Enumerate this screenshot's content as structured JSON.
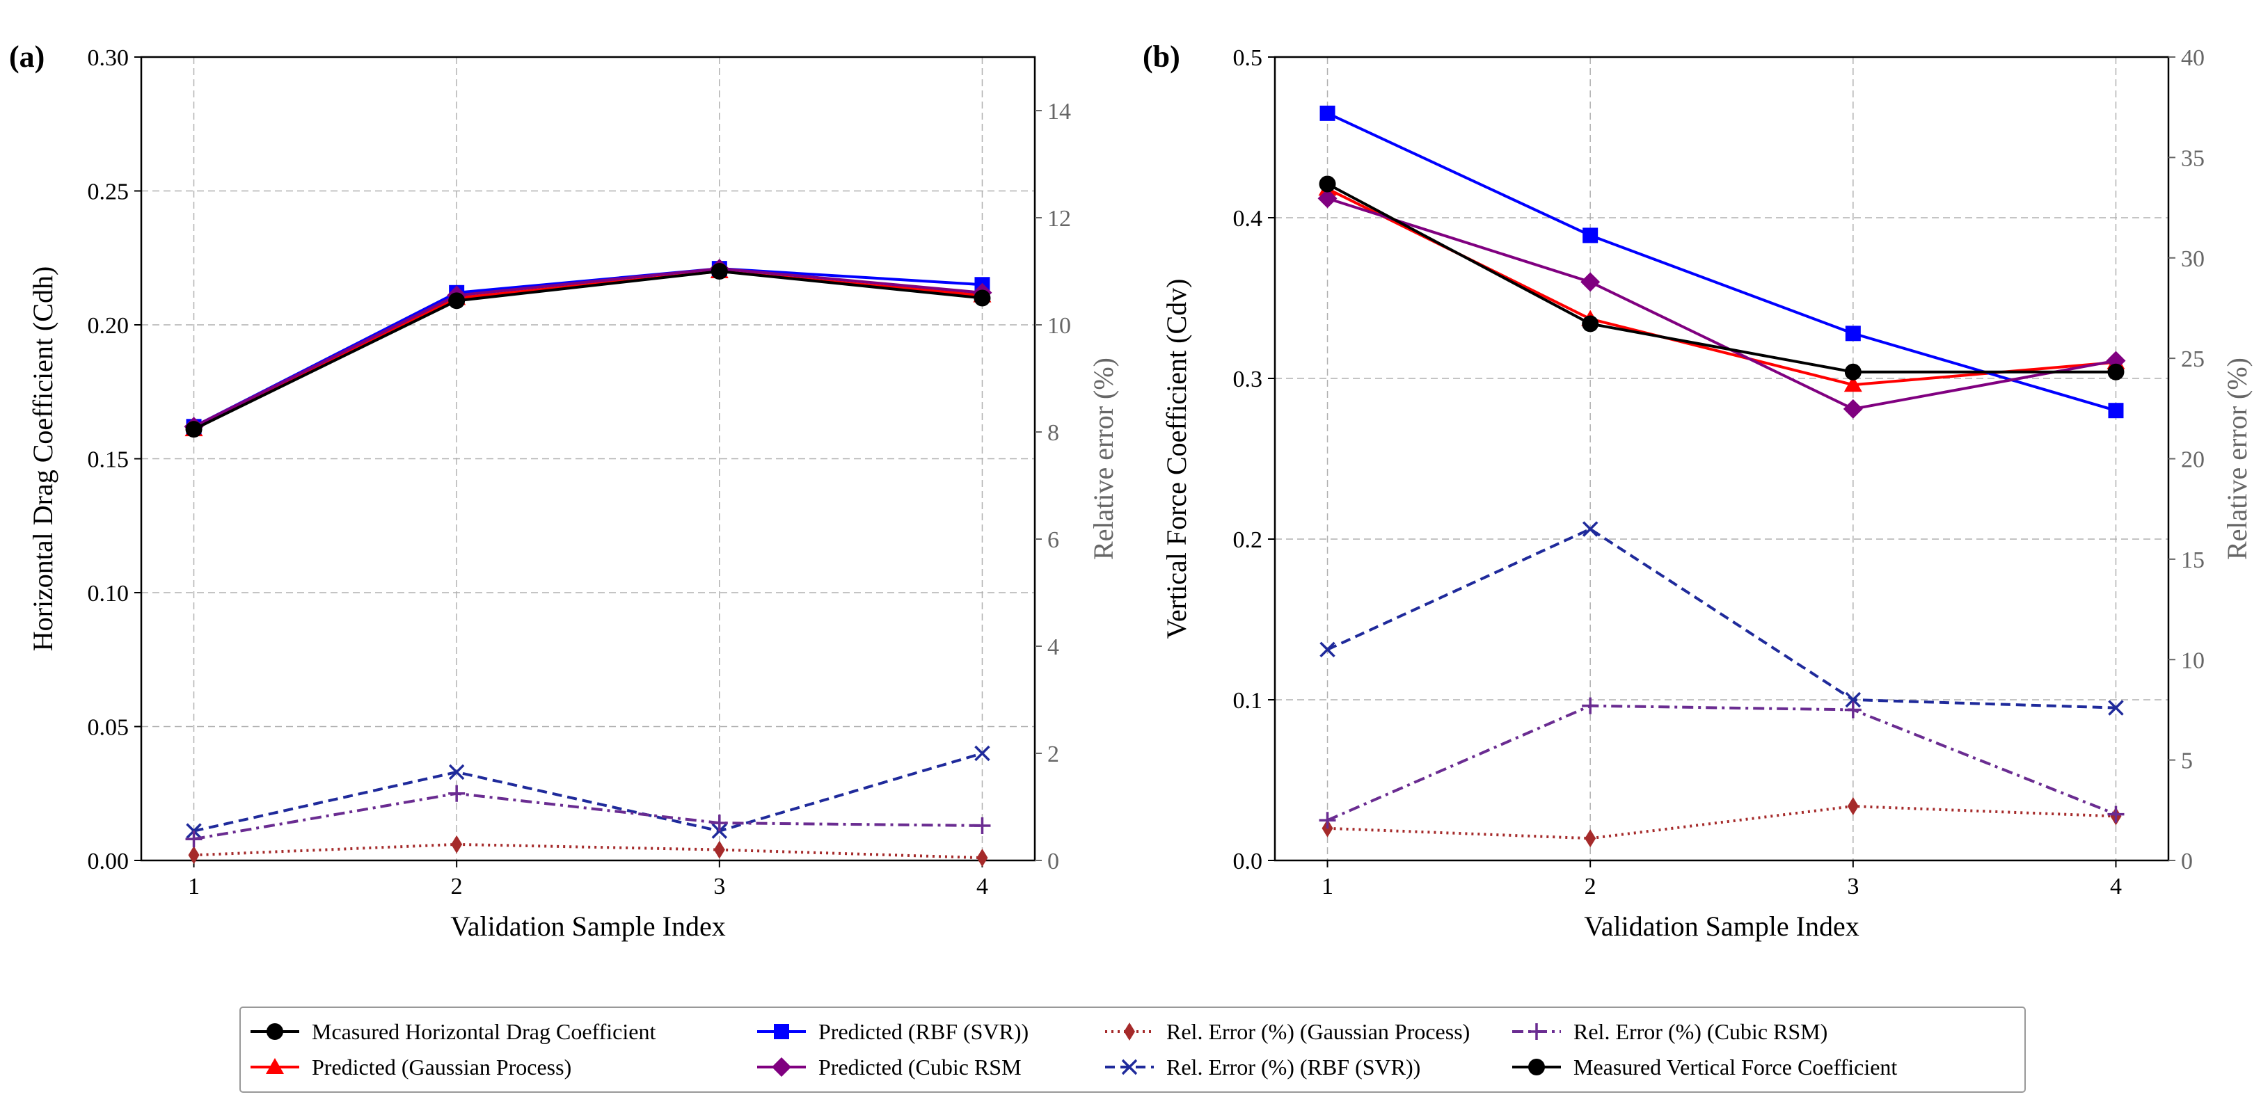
{
  "chart_data": [
    {
      "type": "line",
      "panel_label": "(a)",
      "xlabel": "Validation Sample Index",
      "ylabel": "Horizontal Drag Coefficient (Cdh)",
      "y2label": "Relative error (%)",
      "x": [
        1,
        2,
        3,
        4
      ],
      "xticks": [
        "1",
        "2",
        "3",
        "4"
      ],
      "xlim": [
        0.8,
        4.2
      ],
      "ylim": [
        0,
        0.3
      ],
      "yticks": [
        "0.00",
        "0.05",
        "0.10",
        "0.15",
        "0.20",
        "0.25",
        "0.30"
      ],
      "y2lim": [
        0,
        15
      ],
      "y2ticks": [
        "0",
        "2",
        "4",
        "6",
        "8",
        "10",
        "12",
        "14"
      ],
      "grid": true,
      "series": [
        {
          "name": "Predicted (Gaussian Process)",
          "axis": "left",
          "color": "#ff0000",
          "marker": "triangle",
          "dash": "solid",
          "values": [
            0.161,
            0.21,
            0.22,
            0.211
          ]
        },
        {
          "name": "Predicted (RBF (SVR))",
          "axis": "left",
          "color": "#0000ff",
          "marker": "square",
          "dash": "solid",
          "values": [
            0.162,
            0.212,
            0.221,
            0.215
          ]
        },
        {
          "name": "Predicted (Cubic RSM)",
          "axis": "left",
          "color": "#800080",
          "marker": "diamond",
          "dash": "solid",
          "values": [
            0.162,
            0.211,
            0.221,
            0.212
          ]
        },
        {
          "name": "Mcasured Horizontal Drag Coefficient",
          "axis": "left",
          "color": "#000000",
          "marker": "circle",
          "dash": "solid",
          "values": [
            0.161,
            0.209,
            0.22,
            0.21
          ]
        },
        {
          "name": "Rel. Error (%) (Gaussian Process)",
          "axis": "right",
          "color": "#a52a2a",
          "marker": "thin-diamond",
          "dash": "dotted",
          "values": [
            0.1,
            0.3,
            0.2,
            0.05
          ]
        },
        {
          "name": "Rel. Error (%) (RBF (SVR))",
          "axis": "right",
          "color": "#1f2a9b",
          "marker": "x",
          "dash": "dashed",
          "values": [
            0.55,
            1.65,
            0.55,
            2.0
          ]
        },
        {
          "name": "Rel. Error (%) (Cubic RSM)",
          "axis": "right",
          "color": "#6a2c91",
          "marker": "plus",
          "dash": "dashdot",
          "values": [
            0.4,
            1.25,
            0.7,
            0.65
          ]
        }
      ]
    },
    {
      "type": "line",
      "panel_label": "(b)",
      "xlabel": "Validation Sample Index",
      "ylabel": "Vertical Force Coefficient (Cdv)",
      "y2label": "Relative error (%)",
      "x": [
        1,
        2,
        3,
        4
      ],
      "xticks": [
        "1",
        "2",
        "3",
        "4"
      ],
      "xlim": [
        0.8,
        4.2
      ],
      "ylim": [
        0,
        0.5
      ],
      "yticks": [
        "0.0",
        "0.1",
        "0.2",
        "0.3",
        "0.4",
        "0.5"
      ],
      "y2lim": [
        0,
        40
      ],
      "y2ticks": [
        "0",
        "5",
        "10",
        "15",
        "20",
        "25",
        "30",
        "35",
        "40"
      ],
      "grid": true,
      "series": [
        {
          "name": "Predicted (Gaussian Process)",
          "axis": "left",
          "color": "#ff0000",
          "marker": "triangle",
          "dash": "solid",
          "values": [
            0.418,
            0.337,
            0.296,
            0.31
          ]
        },
        {
          "name": "Predicted (RBF (SVR))",
          "axis": "left",
          "color": "#0000ff",
          "marker": "square",
          "dash": "solid",
          "values": [
            0.465,
            0.389,
            0.328,
            0.28
          ]
        },
        {
          "name": "Predicted (Cubic RSM)",
          "axis": "left",
          "color": "#800080",
          "marker": "diamond",
          "dash": "solid",
          "values": [
            0.412,
            0.36,
            0.281,
            0.311
          ]
        },
        {
          "name": "Measured Vertical Force Coefficient",
          "axis": "left",
          "color": "#000000",
          "marker": "circle",
          "dash": "solid",
          "values": [
            0.421,
            0.334,
            0.304,
            0.304
          ]
        },
        {
          "name": "Rel. Error (%) (Gaussian Process)",
          "axis": "right",
          "color": "#a52a2a",
          "marker": "thin-diamond",
          "dash": "dotted",
          "values": [
            1.6,
            1.1,
            2.7,
            2.2
          ]
        },
        {
          "name": "Rel. Error (%) (RBF (SVR))",
          "axis": "right",
          "color": "#1f2a9b",
          "marker": "x",
          "dash": "dashed",
          "values": [
            10.5,
            16.5,
            8.0,
            7.6
          ]
        },
        {
          "name": "Rel. Error (%) (Cubic RSM)",
          "axis": "right",
          "color": "#6a2c91",
          "marker": "plus",
          "dash": "dashdot",
          "values": [
            2.0,
            7.7,
            7.5,
            2.3
          ]
        }
      ]
    }
  ],
  "legend": {
    "placement": "bottom-center",
    "columns": 4,
    "items": [
      {
        "label": "Mcasured Horizontal Drag Coefficient",
        "color": "#000000",
        "marker": "circle",
        "dash": "solid"
      },
      {
        "label": "Predicted (Gaussian Process)",
        "color": "#ff0000",
        "marker": "triangle",
        "dash": "solid"
      },
      {
        "label": "Predicted (RBF (SVR))",
        "color": "#0000ff",
        "marker": "square",
        "dash": "solid"
      },
      {
        "label": "Predicted (Cubic RSM",
        "color": "#800080",
        "marker": "diamond",
        "dash": "solid"
      },
      {
        "label": "Rel. Error (%) (Gaussian Process)",
        "color": "#a52a2a",
        "marker": "thin-diamond",
        "dash": "dotted"
      },
      {
        "label": "Rel. Error (%) (RBF (SVR))",
        "color": "#1f2a9b",
        "marker": "x",
        "dash": "dashed"
      },
      {
        "label": "Rel. Error (%) (Cubic RSM)",
        "color": "#6a2c91",
        "marker": "plus",
        "dash": "dashdot"
      },
      {
        "label": "Measured Vertical Force Coefficient",
        "color": "#000000",
        "marker": "circle",
        "dash": "solid"
      }
    ]
  }
}
